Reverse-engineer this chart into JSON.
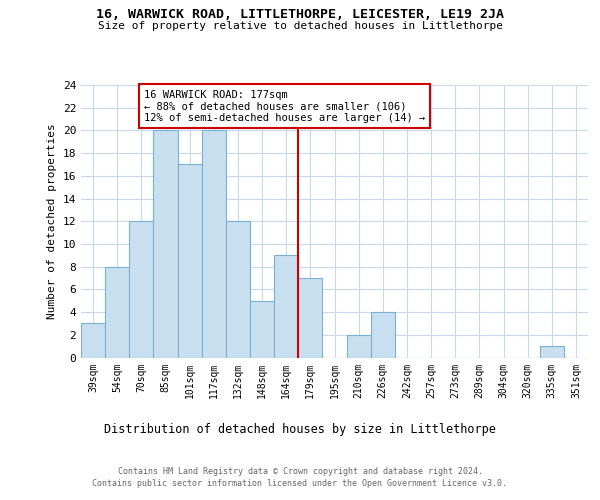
{
  "title": "16, WARWICK ROAD, LITTLETHORPE, LEICESTER, LE19 2JA",
  "subtitle": "Size of property relative to detached houses in Littlethorpe",
  "xlabel": "Distribution of detached houses by size in Littlethorpe",
  "ylabel": "Number of detached properties",
  "bin_labels": [
    "39sqm",
    "54sqm",
    "70sqm",
    "85sqm",
    "101sqm",
    "117sqm",
    "132sqm",
    "148sqm",
    "164sqm",
    "179sqm",
    "195sqm",
    "210sqm",
    "226sqm",
    "242sqm",
    "257sqm",
    "273sqm",
    "289sqm",
    "304sqm",
    "320sqm",
    "335sqm",
    "351sqm"
  ],
  "bin_values": [
    3,
    8,
    12,
    20,
    17,
    20,
    12,
    5,
    9,
    7,
    0,
    2,
    4,
    0,
    0,
    0,
    0,
    0,
    0,
    1,
    0
  ],
  "bar_color": "#c8dff0",
  "bar_edge_color": "#7ab0d4",
  "property_line_x": 8.5,
  "property_line_color": "#cc0000",
  "annotation_line1": "16 WARWICK ROAD: 177sqm",
  "annotation_line2": "← 88% of detached houses are smaller (106)",
  "annotation_line3": "12% of semi-detached houses are larger (14) →",
  "annotation_box_color": "#ffffff",
  "annotation_box_edge_color": "#cc0000",
  "ylim": [
    0,
    24
  ],
  "yticks": [
    0,
    2,
    4,
    6,
    8,
    10,
    12,
    14,
    16,
    18,
    20,
    22,
    24
  ],
  "background_color": "#ffffff",
  "grid_color": "#c8d8e8",
  "footer_line1": "Contains HM Land Registry data © Crown copyright and database right 2024.",
  "footer_line2": "Contains public sector information licensed under the Open Government Licence v3.0."
}
